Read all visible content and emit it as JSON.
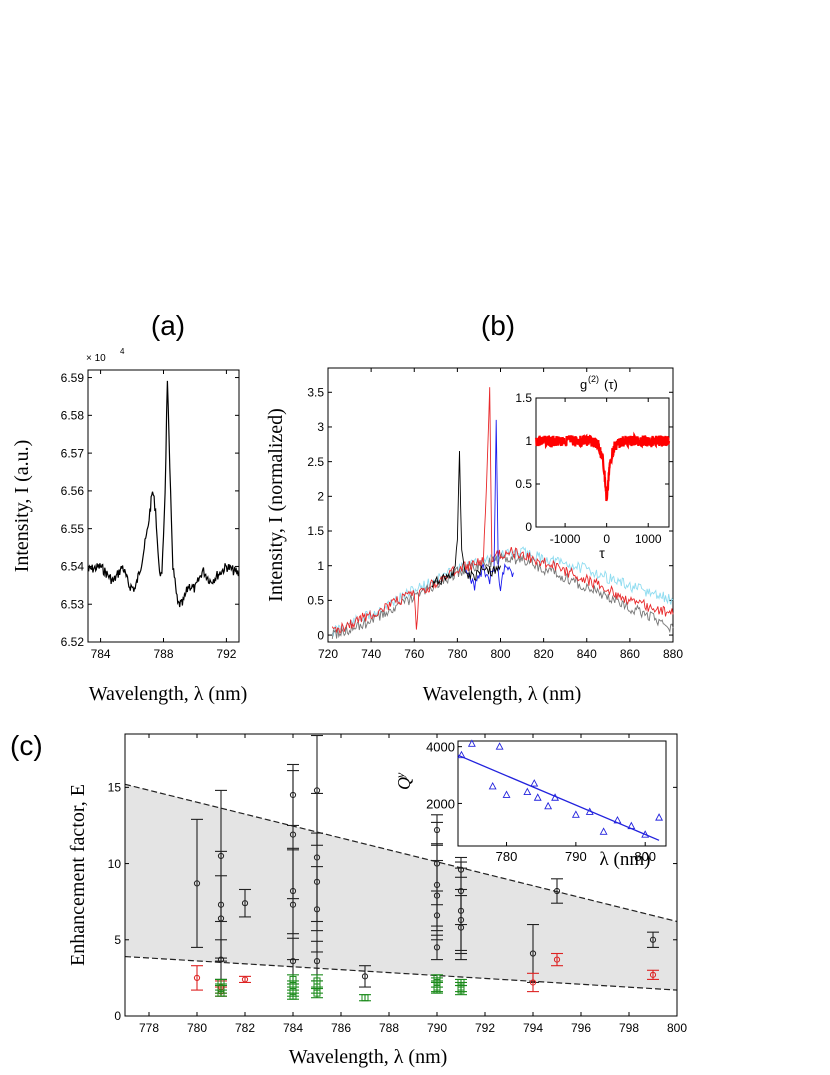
{
  "panel_labels": {
    "a": "(a)",
    "b": "(b)",
    "c": "(c)"
  },
  "chart_data": [
    {
      "id": "a",
      "type": "line",
      "xlabel": "Wavelength, λ (nm)",
      "ylabel": "Intensity, I (a.u.)",
      "xlim": [
        783.2,
        792.8
      ],
      "ylim": [
        6.52,
        6.592
      ],
      "xticks": [
        784,
        788,
        792
      ],
      "yticks": [
        6.52,
        6.53,
        6.54,
        6.55,
        6.56,
        6.57,
        6.58,
        6.59
      ],
      "ytick_labels": [
        "6.52",
        "6.53",
        "6.54",
        "6.55",
        "6.56",
        "6.57",
        "6.58",
        "6.59"
      ],
      "y_exponent": "× 10",
      "y_exponent_power": "4",
      "series": [
        {
          "name": "spectrum",
          "color": "#000000",
          "x": [
            783.2,
            784.0,
            784.8,
            785.4,
            785.8,
            786.2,
            786.6,
            787.0,
            787.3,
            787.5,
            787.7,
            787.9,
            788.1,
            788.25,
            788.4,
            788.6,
            788.9,
            789.2,
            789.6,
            790.0,
            790.5,
            791.0,
            791.5,
            792.0,
            792.8
          ],
          "y": [
            6.539,
            6.54,
            6.536,
            6.54,
            6.535,
            6.534,
            6.541,
            6.55,
            6.56,
            6.555,
            6.54,
            6.537,
            6.56,
            6.59,
            6.565,
            6.54,
            6.53,
            6.53,
            6.535,
            6.534,
            6.539,
            6.536,
            6.538,
            6.54,
            6.538
          ]
        }
      ]
    },
    {
      "id": "b",
      "type": "line",
      "xlabel": "Wavelength, λ (nm)",
      "ylabel": "Intensity, I (normalized)",
      "xlim": [
        720,
        880
      ],
      "ylim": [
        -0.1,
        3.85
      ],
      "xticks": [
        720,
        740,
        760,
        780,
        800,
        820,
        840,
        860,
        880
      ],
      "yticks": [
        0,
        0.5,
        1,
        1.5,
        2,
        2.5,
        3,
        3.5
      ],
      "ytick_labels": [
        "0",
        "0.5",
        "1",
        "1.5",
        "2",
        "2.5",
        "3",
        "3.5"
      ],
      "series": [
        {
          "name": "cyan",
          "color": "#8fdcf0",
          "x": [
            722,
            740,
            760,
            780,
            800,
            810,
            820,
            840,
            860,
            880
          ],
          "y": [
            0.05,
            0.3,
            0.65,
            0.95,
            1.15,
            1.2,
            1.1,
            0.95,
            0.7,
            0.5
          ]
        },
        {
          "name": "gray",
          "color": "#777777",
          "x": [
            722,
            740,
            760,
            780,
            800,
            810,
            820,
            840,
            860,
            880
          ],
          "y": [
            0.0,
            0.2,
            0.55,
            0.9,
            1.1,
            1.1,
            0.95,
            0.7,
            0.4,
            0.1
          ]
        },
        {
          "name": "red",
          "color": "#e8282a",
          "x": [
            722,
            740,
            760,
            761,
            762,
            780,
            792,
            794,
            795,
            796,
            798,
            805,
            820,
            840,
            860,
            880
          ],
          "y": [
            0.05,
            0.3,
            0.6,
            0.0,
            0.6,
            0.95,
            1.05,
            2.6,
            3.6,
            1.0,
            1.15,
            1.2,
            1.05,
            0.8,
            0.5,
            0.3
          ]
        },
        {
          "name": "blue",
          "color": "#1a1aee",
          "x": [
            784,
            788,
            792,
            795,
            797,
            798,
            799,
            800,
            802,
            806
          ],
          "y": [
            0.9,
            0.7,
            0.95,
            0.8,
            1.0,
            3.05,
            0.9,
            0.7,
            1.0,
            0.9
          ]
        },
        {
          "name": "black",
          "color": "#000000",
          "x": [
            768,
            772,
            776,
            778,
            779,
            780,
            781,
            782,
            784,
            788,
            792,
            796,
            800
          ],
          "y": [
            0.7,
            0.8,
            0.85,
            0.9,
            1.0,
            1.3,
            2.7,
            1.2,
            0.9,
            0.85,
            1.0,
            0.9,
            1.0
          ]
        }
      ],
      "inset": {
        "title": "g",
        "title_sup": "(2)",
        "title_suffix": "(τ)",
        "xlabel": "τ",
        "xlim": [
          -1700,
          1500
        ],
        "ylim": [
          0,
          1.5
        ],
        "xticks": [
          -1000,
          0,
          1000
        ],
        "xtick_labels": [
          "-1000",
          "0",
          "1000"
        ],
        "yticks": [
          0,
          0.5,
          1,
          1.5
        ],
        "ytick_labels": [
          "0",
          "0.5",
          "1",
          "1.5"
        ],
        "color": "#ff0000",
        "x": [
          -1700,
          -400,
          -200,
          -100,
          -50,
          0,
          50,
          100,
          200,
          400,
          1500
        ],
        "y": [
          1.0,
          1.0,
          0.95,
          0.8,
          0.6,
          0.3,
          0.6,
          0.8,
          0.95,
          1.0,
          1.0
        ]
      }
    },
    {
      "id": "c",
      "type": "scatter",
      "xlabel": "Wavelength, λ (nm)",
      "ylabel": "Enhancement factor, E",
      "xlim": [
        777,
        800
      ],
      "ylim": [
        0,
        18.5
      ],
      "xticks": [
        778,
        780,
        782,
        784,
        786,
        788,
        790,
        792,
        794,
        796,
        798,
        800
      ],
      "yticks": [
        0,
        5,
        10,
        15
      ],
      "ytick_labels": [
        "0",
        "5",
        "10",
        "15"
      ],
      "band": {
        "upper": [
          [
            777,
            15.2
          ],
          [
            800,
            6.2
          ]
        ],
        "lower": [
          [
            777,
            3.9
          ],
          [
            800,
            1.7
          ]
        ],
        "fill": "#e4e4e4"
      },
      "series": [
        {
          "name": "black",
          "color": "#222222",
          "points": [
            [
              780,
              8.7,
              4.2
            ],
            [
              781,
              10.5,
              4.3
            ],
            [
              781,
              7.3,
              3.5
            ],
            [
              781,
              6.4,
              2.8
            ],
            [
              781,
              3.7,
              1.3
            ],
            [
              782,
              7.4,
              0.9
            ],
            [
              784,
              14.5,
              2.0
            ],
            [
              784,
              11.9,
              4.2
            ],
            [
              784,
              8.2,
              2.8
            ],
            [
              784,
              7.3,
              3.6
            ],
            [
              784,
              3.6,
              1.5
            ],
            [
              785,
              14.8,
              3.6
            ],
            [
              785,
              10.4,
              4.2
            ],
            [
              785,
              8.8,
              3.2
            ],
            [
              785,
              7.0,
              2.8
            ],
            [
              785,
              3.6,
              1.3
            ],
            [
              787,
              2.6,
              0.7
            ],
            [
              790,
              12.2,
              1.0
            ],
            [
              790,
              10.0,
              2.7
            ],
            [
              790,
              8.6,
              2.7
            ],
            [
              790,
              7.9,
              2.3
            ],
            [
              790,
              6.6,
              1.6
            ],
            [
              790,
              4.5,
              0.8
            ],
            [
              791,
              9.6,
              0.5
            ],
            [
              791,
              8.2,
              2.2
            ],
            [
              791,
              6.9,
              2.8
            ],
            [
              791,
              6.3,
              2.0
            ],
            [
              791,
              5.8,
              2.1
            ],
            [
              794,
              4.1,
              1.9
            ],
            [
              795,
              8.2,
              0.8
            ],
            [
              799,
              5.0,
              0.5
            ]
          ]
        },
        {
          "name": "red",
          "color": "#dd2222",
          "points": [
            [
              780,
              2.5,
              0.8
            ],
            [
              781,
              1.9,
              0.4
            ],
            [
              781,
              1.6,
              0.3
            ],
            [
              782,
              2.4,
              0.2
            ],
            [
              794,
              2.2,
              0.6
            ],
            [
              795,
              3.7,
              0.4
            ],
            [
              799,
              2.7,
              0.3
            ]
          ]
        },
        {
          "name": "green",
          "color": "#1a8a1a",
          "points": [
            [
              781,
              2.2,
              0.2
            ],
            [
              781,
              1.8,
              0.3
            ],
            [
              781,
              1.5,
              0.2
            ],
            [
              784,
              2.4,
              0.3
            ],
            [
              784,
              2.0,
              0.3
            ],
            [
              784,
              1.6,
              0.3
            ],
            [
              784,
              1.3,
              0.2
            ],
            [
              785,
              2.3,
              0.4
            ],
            [
              785,
              1.9,
              0.4
            ],
            [
              785,
              1.5,
              0.3
            ],
            [
              787,
              1.2,
              0.2
            ],
            [
              790,
              2.5,
              0.2
            ],
            [
              790,
              2.2,
              0.3
            ],
            [
              790,
              1.9,
              0.3
            ],
            [
              790,
              1.7,
              0.2
            ],
            [
              791,
              2.2,
              0.2
            ],
            [
              791,
              1.9,
              0.3
            ],
            [
              791,
              1.7,
              0.3
            ]
          ]
        }
      ],
      "inset": {
        "ylabel": "Q",
        "ylabel_sup": "y",
        "xlabel": "λ (nm)",
        "xlim": [
          773,
          803
        ],
        "ylim": [
          500,
          4200
        ],
        "xticks": [
          780,
          790,
          800
        ],
        "xtick_labels": [
          "780",
          "790",
          "800"
        ],
        "yticks": [
          2000,
          4000
        ],
        "ytick_labels": [
          "2000",
          "4000"
        ],
        "color": "#2222dd",
        "points": [
          [
            773.5,
            3700
          ],
          [
            775,
            4100
          ],
          [
            778,
            2600
          ],
          [
            779,
            4000
          ],
          [
            780,
            2300
          ],
          [
            783,
            2400
          ],
          [
            784,
            2700
          ],
          [
            784.5,
            2200
          ],
          [
            786,
            1900
          ],
          [
            787,
            2200
          ],
          [
            790,
            1600
          ],
          [
            792,
            1700
          ],
          [
            794,
            1000
          ],
          [
            796,
            1400
          ],
          [
            798,
            1200
          ],
          [
            800,
            900
          ],
          [
            802,
            1500
          ]
        ],
        "fit": [
          [
            773,
            3700
          ],
          [
            802,
            700
          ]
        ]
      }
    }
  ]
}
